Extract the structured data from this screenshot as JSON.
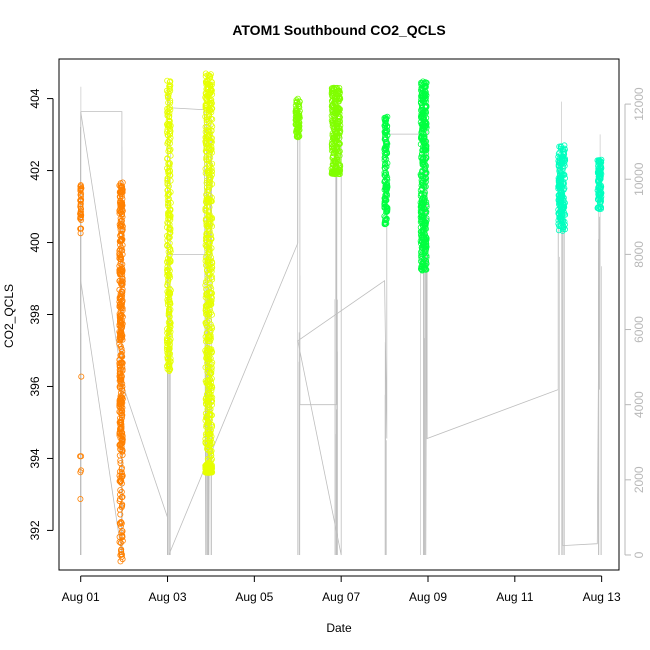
{
  "chart_data": {
    "type": "scatter",
    "title": "ATOM1 Southbound CO2_QCLS",
    "xlabel": "Date",
    "ylabel": "CO2_QCLS",
    "x_ticks": [
      "Aug 01",
      "Aug 03",
      "Aug 05",
      "Aug 07",
      "Aug 09",
      "Aug 11",
      "Aug 13"
    ],
    "x_tick_days": [
      1,
      3,
      5,
      7,
      9,
      11,
      13
    ],
    "xlim": [
      0.5,
      13.4
    ],
    "ylim": [
      390.9,
      405.1
    ],
    "y_ticks": [
      392,
      394,
      396,
      398,
      400,
      402,
      404
    ],
    "y2lim": [
      -400,
      13200
    ],
    "y2_ticks": [
      0,
      2000,
      4000,
      6000,
      8000,
      10000,
      12000
    ],
    "grid": false,
    "colors": {
      "orange": "#ff8000",
      "yellow": "#e6ff00",
      "green_light": "#80ff00",
      "green": "#00ff40",
      "cyan": "#00ffbf",
      "altitude_line": "#bebebe"
    },
    "series": [
      {
        "color": "#ff8000",
        "day": 1.0,
        "width": 0.03,
        "core": [
          400.2,
          401.6
        ],
        "tail": [
          392.4,
          397.8
        ],
        "density": 45
      },
      {
        "color": "#ff8000",
        "day": 1.93,
        "width": 0.08,
        "core": [
          394.2,
          401.7
        ],
        "tail": [
          391.1,
          394.2
        ],
        "density": 420
      },
      {
        "color": "#e6ff00",
        "day": 3.03,
        "width": 0.09,
        "core": [
          397.5,
          404.5
        ],
        "tail": [
          396.4,
          397.5
        ],
        "density": 260
      },
      {
        "color": "#e6ff00",
        "day": 3.95,
        "width": 0.16,
        "core": [
          393.8,
          404.7
        ],
        "tail": [
          393.6,
          393.8
        ],
        "density": 650
      },
      {
        "color": "#80ff00",
        "day": 6.0,
        "width": 0.1,
        "core": [
          403.1,
          404.0
        ],
        "tail": [
          402.9,
          403.1
        ],
        "density": 80
      },
      {
        "color": "#80ff00",
        "day": 6.88,
        "width": 0.2,
        "core": [
          402.0,
          404.3
        ],
        "tail": [
          401.9,
          402.0
        ],
        "density": 260
      },
      {
        "color": "#00ff40",
        "day": 8.03,
        "width": 0.07,
        "core": [
          400.5,
          403.5
        ],
        "tail": [
          400.5,
          400.5
        ],
        "density": 140
      },
      {
        "color": "#00ff40",
        "day": 8.9,
        "width": 0.14,
        "core": [
          399.2,
          404.5
        ],
        "tail": [
          399.2,
          399.2
        ],
        "density": 380
      },
      {
        "color": "#00ffbf",
        "day": 12.08,
        "width": 0.16,
        "core": [
          400.3,
          402.7
        ],
        "tail": [
          400.3,
          400.3
        ],
        "density": 200
      },
      {
        "color": "#00ffbf",
        "day": 12.95,
        "width": 0.09,
        "core": [
          400.9,
          402.3
        ],
        "tail": [
          400.9,
          400.9
        ],
        "density": 110
      }
    ],
    "altitude_y2_values": [
      [
        1.0,
        11800
      ],
      [
        1.95,
        11800
      ],
      [
        1.95,
        0
      ],
      [
        1.0,
        7300
      ],
      [
        1.0,
        11800
      ],
      [
        1.98,
        4500
      ],
      [
        3.0,
        1000
      ],
      [
        3.0,
        12500
      ],
      [
        3.05,
        11900
      ],
      [
        3.85,
        11850
      ],
      [
        3.88,
        0
      ],
      [
        3.9,
        11900
      ],
      [
        3.95,
        0
      ],
      [
        4.0,
        11900
      ],
      [
        4.0,
        8000
      ],
      [
        3.03,
        8000
      ],
      [
        3.03,
        0
      ],
      [
        6.0,
        8300
      ],
      [
        6.0,
        11200
      ],
      [
        6.05,
        11300
      ],
      [
        6.05,
        4000
      ],
      [
        6.9,
        4000
      ],
      [
        6.9,
        11200
      ],
      [
        7.0,
        11200
      ],
      [
        7.0,
        0
      ],
      [
        6.0,
        5700
      ],
      [
        8.0,
        7300
      ],
      [
        8.05,
        3100
      ],
      [
        8.05,
        11200
      ],
      [
        8.95,
        11200
      ],
      [
        8.95,
        0
      ],
      [
        8.98,
        11500
      ],
      [
        8.98,
        3100
      ],
      [
        12.0,
        4400
      ],
      [
        12.0,
        10500
      ],
      [
        12.1,
        10500
      ],
      [
        12.1,
        250
      ],
      [
        12.9,
        300
      ],
      [
        12.95,
        9000
      ],
      [
        12.95,
        4400
      ]
    ]
  }
}
